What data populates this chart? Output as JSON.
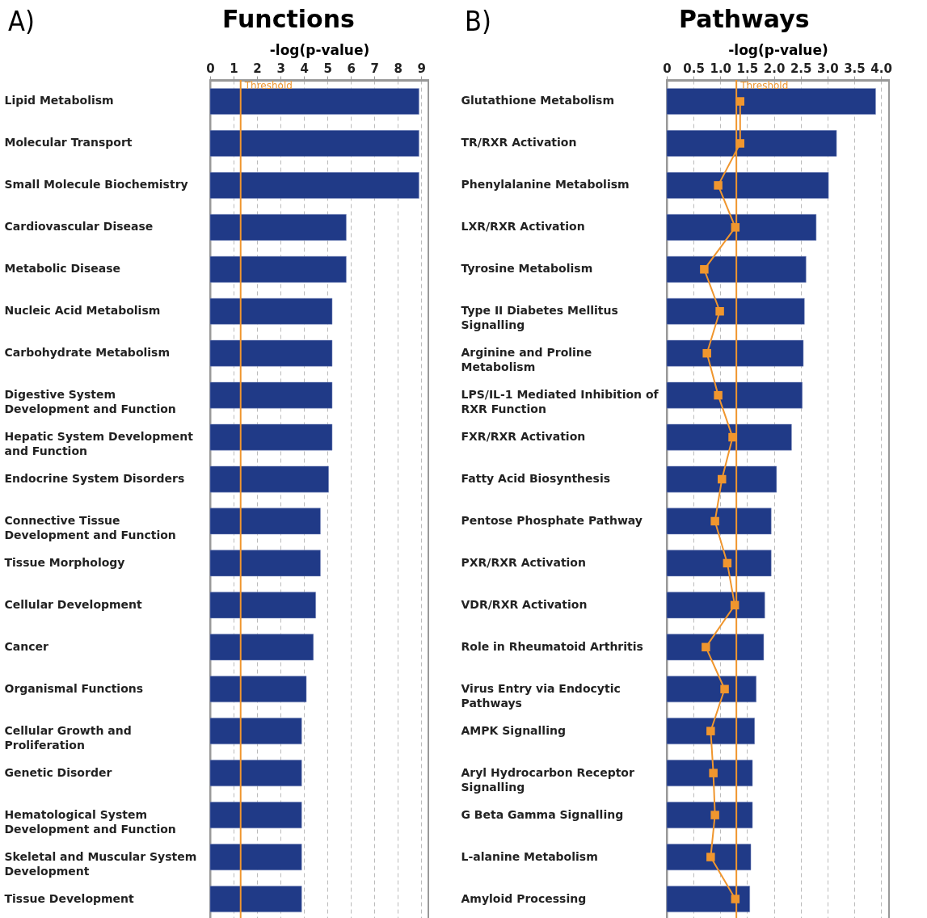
{
  "chart_data": [
    {
      "type": "bar",
      "title": "Functions",
      "annotations": [
        "A)"
      ],
      "xlabel": "-log(p-value)",
      "orientation": "horizontal",
      "grid": "x",
      "categories": [
        "Lipid Metabolism",
        "Molecular Transport",
        "Small Molecule Biochemistry",
        "Cardiovascular Disease",
        "Metabolic Disease",
        "Nucleic Acid Metabolism",
        "Carbohydrate Metabolism",
        "Digestive System Development and Function",
        "Hepatic System Development and Function",
        "Endocrine System Disorders",
        "Connective Tissue Development and Function",
        "Tissue Morphology",
        "Cellular Development",
        "Cancer",
        "Organismal Functions",
        "Cellular Growth and Proliferation",
        "Genetic Disorder",
        "Hematological System Development and Function",
        "Skeletal and Muscular System Development",
        "Tissue Development"
      ],
      "series": [
        {
          "color": "#203a87",
          "values": [
            8.9,
            8.9,
            8.9,
            5.8,
            5.8,
            5.2,
            5.2,
            5.2,
            5.2,
            5.05,
            4.7,
            4.7,
            4.5,
            4.4,
            4.1,
            3.9,
            3.9,
            3.9,
            3.9,
            3.9
          ]
        }
      ],
      "xlim": [
        0,
        9.3
      ],
      "xticks": [
        0,
        1,
        2,
        3,
        4,
        5,
        6,
        7,
        8,
        9
      ],
      "ref_lines": [
        {
          "axis": "x",
          "value": 1.3,
          "label": "Threshold",
          "color": "#f0962e"
        }
      ]
    },
    {
      "type": "bar",
      "title": "Pathways",
      "annotations": [
        "B)"
      ],
      "xlabel": "-log(p-value)",
      "orientation": "horizontal",
      "grid": "x",
      "categories": [
        "Glutathione Metabolism",
        "TR/RXR Activation",
        "Phenylalanine Metabolism",
        "LXR/RXR Activation",
        "Tyrosine Metabolism",
        "Type II Diabetes Mellitus Signalling",
        "Arginine and Proline Metabolism",
        "LPS/IL-1 Mediated Inhibition of RXR Function",
        "FXR/RXR Activation",
        "Fatty Acid Biosynthesis",
        "Pentose Phosphate Pathway",
        "PXR/RXR Activation",
        "VDR/RXR Activation",
        "Role in Rheumatoid Arthritis",
        "Virus Entry via Endocytic Pathways",
        "AMPK Signalling",
        "Aryl Hydrocarbon Receptor Signalling",
        "G Beta Gamma Signalling",
        "L-alanine Metabolism",
        "Amyloid Processing"
      ],
      "series": [
        {
          "color": "#203a87",
          "values": [
            3.9,
            3.17,
            3.02,
            2.79,
            2.6,
            2.57,
            2.55,
            2.53,
            2.33,
            2.05,
            1.95,
            1.95,
            1.83,
            1.81,
            1.67,
            1.64,
            1.6,
            1.6,
            1.57,
            1.55
          ]
        },
        {
          "type": "line",
          "marker": "square",
          "color": "#f0962e",
          "values": [
            1.37,
            1.37,
            0.96,
            1.28,
            0.7,
            0.99,
            0.75,
            0.96,
            1.23,
            1.03,
            0.9,
            1.13,
            1.27,
            0.73,
            1.08,
            0.82,
            0.87,
            0.9,
            0.82,
            1.28
          ]
        }
      ],
      "xlim": [
        0,
        4.15
      ],
      "xticks": [
        {
          "value": 0,
          "label": "0"
        },
        0.5,
        {
          "value": 1,
          "label": "1.0"
        },
        1.5,
        {
          "value": 2,
          "label": "2.0"
        },
        2.5,
        {
          "value": 3,
          "label": "3.0"
        },
        3.5,
        {
          "value": 4,
          "label": "4.0"
        }
      ],
      "ref_lines": [
        {
          "axis": "x",
          "value": 1.3,
          "label": "Threshold",
          "color": "#f0962e"
        }
      ]
    }
  ]
}
